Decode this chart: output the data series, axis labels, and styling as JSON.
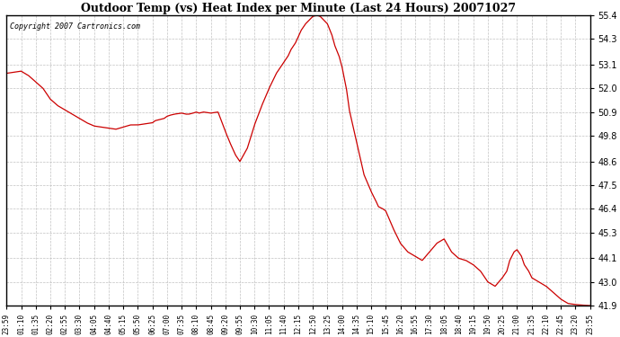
{
  "title": "Outdoor Temp (vs) Heat Index per Minute (Last 24 Hours) 20071027",
  "copyright_text": "Copyright 2007 Cartronics.com",
  "line_color": "#cc0000",
  "background_color": "#ffffff",
  "grid_color": "#bbbbbb",
  "yticks": [
    41.9,
    43.0,
    44.1,
    45.3,
    46.4,
    47.5,
    48.6,
    49.8,
    50.9,
    52.0,
    53.1,
    54.3,
    55.4
  ],
  "ymin": 41.9,
  "ymax": 55.4,
  "xtick_labels": [
    "23:59",
    "01:10",
    "01:35",
    "02:20",
    "02:55",
    "03:30",
    "04:05",
    "04:40",
    "05:15",
    "05:50",
    "06:25",
    "07:00",
    "07:35",
    "08:10",
    "08:45",
    "09:20",
    "09:55",
    "10:30",
    "11:05",
    "11:40",
    "12:15",
    "12:50",
    "13:25",
    "14:00",
    "14:35",
    "15:10",
    "15:45",
    "16:20",
    "16:55",
    "17:30",
    "18:05",
    "18:40",
    "19:15",
    "19:50",
    "20:25",
    "21:00",
    "21:35",
    "22:10",
    "22:45",
    "23:20",
    "23:55"
  ],
  "key_x": [
    0,
    0.5,
    1.0,
    1.5,
    2.0,
    2.5,
    3.0,
    3.5,
    4.0,
    4.5,
    5.0,
    5.5,
    6.0,
    6.5,
    7.0,
    7.5,
    8.0,
    8.5,
    9.0,
    9.5,
    10.0,
    10.2,
    10.5,
    10.8,
    11.0,
    11.2,
    11.5,
    12.0,
    12.3,
    12.5,
    12.8,
    13.0,
    13.2,
    13.5,
    14.0,
    14.5,
    15.0,
    15.3,
    15.5,
    15.7,
    16.0,
    16.5,
    17.0,
    17.5,
    18.0,
    18.5,
    19.0,
    19.3,
    19.5,
    19.8,
    20.0,
    20.2,
    20.5,
    21.0,
    21.3,
    21.5,
    22.0,
    22.3,
    22.5,
    22.8,
    23.0,
    23.3,
    23.5,
    24.0,
    24.5,
    25.0,
    25.3,
    25.5,
    25.8,
    26.0,
    26.5,
    27.0,
    27.5,
    28.0,
    28.5,
    29.0,
    29.5,
    30.0,
    30.5,
    31.0,
    31.5,
    32.0,
    32.5,
    33.0,
    33.5,
    34.0,
    34.3,
    34.5,
    34.8,
    35.0,
    35.3,
    35.5,
    35.8,
    36.0,
    36.5,
    37.0,
    37.5,
    38.0,
    38.5,
    39.0,
    39.5,
    40.0
  ],
  "key_y": [
    52.7,
    52.75,
    52.8,
    52.6,
    52.3,
    52.0,
    51.5,
    51.2,
    51.0,
    50.8,
    50.6,
    50.4,
    50.25,
    50.2,
    50.15,
    50.1,
    50.2,
    50.3,
    50.3,
    50.35,
    50.4,
    50.5,
    50.55,
    50.6,
    50.7,
    50.75,
    50.8,
    50.85,
    50.8,
    50.8,
    50.85,
    50.9,
    50.85,
    50.9,
    50.85,
    50.9,
    50.0,
    49.5,
    49.2,
    48.9,
    48.6,
    49.2,
    50.3,
    51.2,
    52.0,
    52.7,
    53.2,
    53.5,
    53.8,
    54.1,
    54.4,
    54.7,
    55.0,
    55.35,
    55.4,
    55.35,
    55.0,
    54.5,
    54.0,
    53.5,
    53.0,
    52.0,
    51.0,
    49.5,
    48.0,
    47.2,
    46.8,
    46.5,
    46.4,
    46.3,
    45.5,
    44.8,
    44.4,
    44.2,
    44.0,
    44.4,
    44.8,
    45.0,
    44.4,
    44.1,
    44.0,
    43.8,
    43.5,
    43.0,
    42.8,
    43.2,
    43.5,
    44.0,
    44.4,
    44.5,
    44.2,
    43.8,
    43.5,
    43.2,
    43.0,
    42.8,
    42.5,
    42.2,
    42.0,
    41.95,
    41.92,
    41.9
  ]
}
